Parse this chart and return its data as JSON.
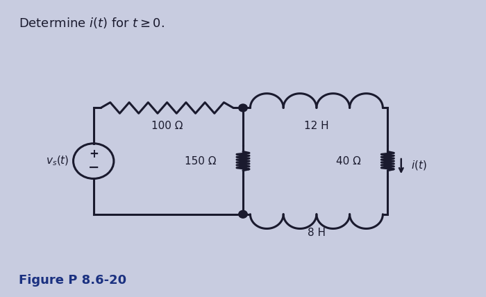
{
  "background_color": "#c8cce0",
  "wire_color": "#1a1a2e",
  "text_color": "#1a1a2e",
  "title": "Determine $i(t)$ for $t \\geq 0$.",
  "figure_label": "Figure P 8.6-20",
  "figure_label_color": "#1a3080",
  "vs_label": "$v_s(t)$",
  "R1_label": "100 Ω",
  "R2_label": "150 Ω",
  "L1_label": "12 H",
  "R3_label": "40 Ω",
  "L2_label": "8 H",
  "i_label": "$i(t)$",
  "xlim": [
    0,
    10
  ],
  "ylim": [
    0,
    7
  ]
}
